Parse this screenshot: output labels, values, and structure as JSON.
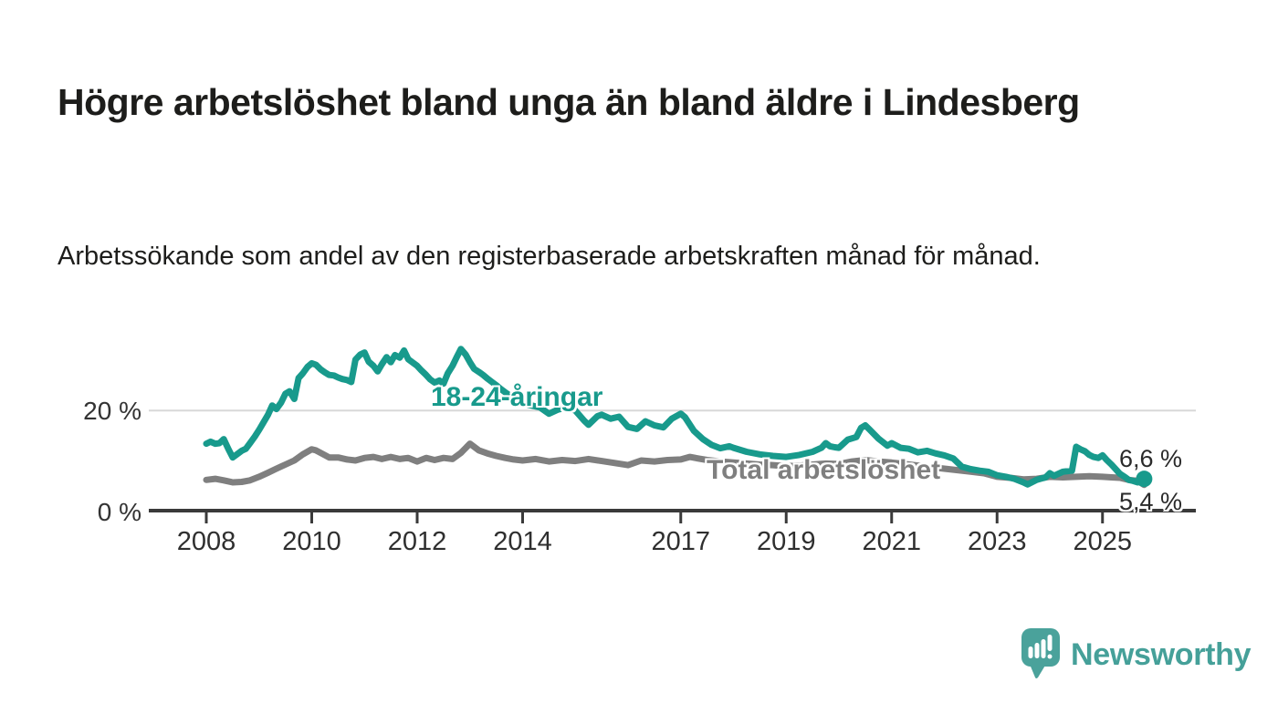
{
  "page": {
    "title": "Högre arbetslöshet bland unga än bland äldre i Lindesberg",
    "subtitle": "Arbetssökande som andel av den registerbaserade arbetskraften månad för månad."
  },
  "branding": {
    "logo_text": "Newsworthy",
    "logo_color": "#45a099",
    "icon": "newsworthy-speech-bubble-bar-chart-icon"
  },
  "colors": {
    "youth_line": "#189a8c",
    "total_line": "#7f7f7f",
    "gridline": "#d8d8d8",
    "axis": "#3a3a3a",
    "text_dark": "#1d1d1b",
    "tick_text": "#2f2f2f"
  },
  "chart_data": {
    "type": "line",
    "title": "Högre arbetslöshet bland unga än bland äldre i Lindesberg",
    "subtitle": "Arbetssökande som andel av den registerbaserade arbetskraften månad för månad.",
    "unit": "%",
    "grid": "single horizontal gridline at 20 %, x axis baseline at 0 %",
    "legend_position": "inline labels on lines",
    "x_axis": {
      "label": "",
      "ticks": [
        2008,
        2010,
        2012,
        2014,
        2017,
        2019,
        2021,
        2023,
        2025
      ],
      "range": [
        2007.6,
        2026.0
      ]
    },
    "y_axis": {
      "label": "",
      "ticks": [
        {
          "value": 0,
          "label": "0 %"
        },
        {
          "value": 20,
          "label": "20 %"
        }
      ],
      "range": [
        0,
        36
      ]
    },
    "series": [
      {
        "name": "18-24-åringar",
        "color": "#189a8c",
        "end_label": "6,6 %",
        "end_value": 6.6,
        "end_dot": true,
        "points": [
          [
            2008.0,
            13.5
          ],
          [
            2008.08,
            13.9
          ],
          [
            2008.17,
            13.5
          ],
          [
            2008.25,
            13.6
          ],
          [
            2008.33,
            14.4
          ],
          [
            2008.42,
            12.4
          ],
          [
            2008.5,
            10.8
          ],
          [
            2008.58,
            11.4
          ],
          [
            2008.67,
            12.1
          ],
          [
            2008.75,
            12.5
          ],
          [
            2008.83,
            13.6
          ],
          [
            2008.92,
            14.9
          ],
          [
            2009.0,
            16.2
          ],
          [
            2009.08,
            17.6
          ],
          [
            2009.17,
            19.2
          ],
          [
            2009.25,
            21.0
          ],
          [
            2009.33,
            20.3
          ],
          [
            2009.42,
            21.6
          ],
          [
            2009.5,
            23.3
          ],
          [
            2009.58,
            23.8
          ],
          [
            2009.67,
            22.3
          ],
          [
            2009.75,
            26.4
          ],
          [
            2009.83,
            27.3
          ],
          [
            2009.92,
            28.6
          ],
          [
            2010.0,
            29.3
          ],
          [
            2010.08,
            29.0
          ],
          [
            2010.17,
            28.1
          ],
          [
            2010.25,
            27.5
          ],
          [
            2010.33,
            27.0
          ],
          [
            2010.42,
            26.9
          ],
          [
            2010.5,
            26.5
          ],
          [
            2010.58,
            26.2
          ],
          [
            2010.67,
            26.0
          ],
          [
            2010.75,
            25.6
          ],
          [
            2010.83,
            30.0
          ],
          [
            2010.92,
            31.0
          ],
          [
            2011.0,
            31.4
          ],
          [
            2011.08,
            29.6
          ],
          [
            2011.17,
            28.8
          ],
          [
            2011.25,
            27.7
          ],
          [
            2011.33,
            29.1
          ],
          [
            2011.42,
            30.5
          ],
          [
            2011.5,
            29.5
          ],
          [
            2011.58,
            30.9
          ],
          [
            2011.67,
            30.4
          ],
          [
            2011.75,
            31.8
          ],
          [
            2011.83,
            30.1
          ],
          [
            2011.92,
            29.4
          ],
          [
            2012.0,
            28.8
          ],
          [
            2012.08,
            27.9
          ],
          [
            2012.17,
            27.0
          ],
          [
            2012.25,
            26.1
          ],
          [
            2012.33,
            25.5
          ],
          [
            2012.42,
            25.9
          ],
          [
            2012.5,
            25.3
          ],
          [
            2012.58,
            27.3
          ],
          [
            2012.67,
            28.8
          ],
          [
            2012.75,
            30.5
          ],
          [
            2012.83,
            32.1
          ],
          [
            2012.92,
            31.0
          ],
          [
            2013.0,
            29.5
          ],
          [
            2013.08,
            28.2
          ],
          [
            2013.17,
            27.6
          ],
          [
            2013.25,
            27.0
          ],
          [
            2013.33,
            26.3
          ],
          [
            2013.42,
            25.6
          ],
          [
            2013.5,
            25.0
          ],
          [
            2013.58,
            24.3
          ],
          [
            2013.67,
            23.6
          ],
          [
            2013.75,
            23.0
          ],
          [
            2013.83,
            22.4
          ],
          [
            2013.92,
            21.8
          ],
          [
            2014.0,
            21.4
          ],
          [
            2014.17,
            21.0
          ],
          [
            2014.33,
            20.6
          ],
          [
            2014.5,
            19.4
          ],
          [
            2014.67,
            20.2
          ],
          [
            2014.83,
            20.6
          ],
          [
            2015.0,
            20.0
          ],
          [
            2015.17,
            18.0
          ],
          [
            2015.25,
            17.2
          ],
          [
            2015.42,
            18.9
          ],
          [
            2015.5,
            19.2
          ],
          [
            2015.67,
            18.4
          ],
          [
            2015.83,
            18.8
          ],
          [
            2016.0,
            16.8
          ],
          [
            2016.17,
            16.4
          ],
          [
            2016.33,
            17.9
          ],
          [
            2016.5,
            17.1
          ],
          [
            2016.67,
            16.7
          ],
          [
            2016.83,
            18.4
          ],
          [
            2017.0,
            19.4
          ],
          [
            2017.08,
            18.7
          ],
          [
            2017.25,
            16.0
          ],
          [
            2017.42,
            14.4
          ],
          [
            2017.58,
            13.3
          ],
          [
            2017.75,
            12.6
          ],
          [
            2017.92,
            13.0
          ],
          [
            2018.0,
            12.7
          ],
          [
            2018.25,
            11.9
          ],
          [
            2018.5,
            11.4
          ],
          [
            2018.75,
            11.1
          ],
          [
            2019.0,
            10.9
          ],
          [
            2019.25,
            11.3
          ],
          [
            2019.5,
            11.9
          ],
          [
            2019.67,
            12.7
          ],
          [
            2019.75,
            13.6
          ],
          [
            2019.83,
            13.0
          ],
          [
            2019.92,
            12.8
          ],
          [
            2020.0,
            12.7
          ],
          [
            2020.17,
            14.3
          ],
          [
            2020.33,
            14.8
          ],
          [
            2020.42,
            16.6
          ],
          [
            2020.5,
            17.1
          ],
          [
            2020.58,
            16.3
          ],
          [
            2020.75,
            14.5
          ],
          [
            2020.92,
            13.1
          ],
          [
            2021.0,
            13.6
          ],
          [
            2021.17,
            12.7
          ],
          [
            2021.33,
            12.5
          ],
          [
            2021.5,
            11.8
          ],
          [
            2021.67,
            12.1
          ],
          [
            2021.83,
            11.6
          ],
          [
            2022.0,
            11.2
          ],
          [
            2022.17,
            10.6
          ],
          [
            2022.33,
            9.0
          ],
          [
            2022.5,
            8.5
          ],
          [
            2022.67,
            8.2
          ],
          [
            2022.83,
            8.0
          ],
          [
            2023.0,
            7.3
          ],
          [
            2023.17,
            7.0
          ],
          [
            2023.33,
            6.6
          ],
          [
            2023.5,
            5.9
          ],
          [
            2023.58,
            5.5
          ],
          [
            2023.75,
            6.4
          ],
          [
            2023.92,
            6.9
          ],
          [
            2024.0,
            7.7
          ],
          [
            2024.08,
            7.2
          ],
          [
            2024.25,
            8.0
          ],
          [
            2024.42,
            8.2
          ],
          [
            2024.5,
            12.9
          ],
          [
            2024.58,
            12.4
          ],
          [
            2024.67,
            12.0
          ],
          [
            2024.75,
            11.3
          ],
          [
            2024.83,
            10.9
          ],
          [
            2024.92,
            10.7
          ],
          [
            2025.0,
            11.2
          ],
          [
            2025.08,
            10.3
          ],
          [
            2025.17,
            9.4
          ],
          [
            2025.25,
            8.5
          ],
          [
            2025.33,
            7.6
          ],
          [
            2025.42,
            7.0
          ],
          [
            2025.5,
            6.4
          ],
          [
            2025.58,
            6.2
          ],
          [
            2025.67,
            5.9
          ],
          [
            2025.79,
            6.6
          ]
        ]
      },
      {
        "name": "Total arbetslöshet",
        "color": "#7f7f7f",
        "end_label": "5,4 %",
        "end_value": 5.4,
        "end_dot": false,
        "points": [
          [
            2008.0,
            6.4
          ],
          [
            2008.17,
            6.6
          ],
          [
            2008.33,
            6.3
          ],
          [
            2008.5,
            5.9
          ],
          [
            2008.67,
            6.0
          ],
          [
            2008.83,
            6.3
          ],
          [
            2009.0,
            7.0
          ],
          [
            2009.17,
            7.8
          ],
          [
            2009.33,
            8.6
          ],
          [
            2009.5,
            9.4
          ],
          [
            2009.67,
            10.2
          ],
          [
            2009.83,
            11.4
          ],
          [
            2010.0,
            12.4
          ],
          [
            2010.08,
            12.2
          ],
          [
            2010.17,
            11.7
          ],
          [
            2010.33,
            10.8
          ],
          [
            2010.5,
            10.8
          ],
          [
            2010.67,
            10.4
          ],
          [
            2010.83,
            10.2
          ],
          [
            2011.0,
            10.7
          ],
          [
            2011.17,
            10.9
          ],
          [
            2011.33,
            10.5
          ],
          [
            2011.5,
            10.9
          ],
          [
            2011.67,
            10.5
          ],
          [
            2011.83,
            10.7
          ],
          [
            2012.0,
            10.0
          ],
          [
            2012.17,
            10.7
          ],
          [
            2012.33,
            10.3
          ],
          [
            2012.5,
            10.7
          ],
          [
            2012.67,
            10.5
          ],
          [
            2012.83,
            11.7
          ],
          [
            2013.0,
            13.5
          ],
          [
            2013.17,
            12.2
          ],
          [
            2013.33,
            11.6
          ],
          [
            2013.5,
            11.1
          ],
          [
            2013.67,
            10.7
          ],
          [
            2013.83,
            10.4
          ],
          [
            2014.0,
            10.2
          ],
          [
            2014.25,
            10.5
          ],
          [
            2014.5,
            10.0
          ],
          [
            2014.75,
            10.3
          ],
          [
            2015.0,
            10.1
          ],
          [
            2015.25,
            10.5
          ],
          [
            2015.5,
            10.1
          ],
          [
            2015.75,
            9.7
          ],
          [
            2016.0,
            9.3
          ],
          [
            2016.25,
            10.2
          ],
          [
            2016.5,
            10.0
          ],
          [
            2016.75,
            10.3
          ],
          [
            2017.0,
            10.4
          ],
          [
            2017.17,
            10.9
          ],
          [
            2017.33,
            10.6
          ],
          [
            2017.5,
            10.3
          ],
          [
            2017.75,
            10.0
          ],
          [
            2018.0,
            9.8
          ],
          [
            2018.25,
            9.6
          ],
          [
            2018.5,
            9.4
          ],
          [
            2018.75,
            9.3
          ],
          [
            2019.0,
            9.1
          ],
          [
            2019.25,
            9.2
          ],
          [
            2019.5,
            9.4
          ],
          [
            2019.75,
            9.6
          ],
          [
            2020.0,
            9.5
          ],
          [
            2020.25,
            10.0
          ],
          [
            2020.5,
            10.3
          ],
          [
            2020.75,
            10.0
          ],
          [
            2021.0,
            9.8
          ],
          [
            2021.25,
            9.5
          ],
          [
            2021.5,
            9.2
          ],
          [
            2021.75,
            8.9
          ],
          [
            2022.0,
            8.6
          ],
          [
            2022.25,
            8.3
          ],
          [
            2022.5,
            8.0
          ],
          [
            2022.75,
            7.7
          ],
          [
            2023.0,
            7.0
          ],
          [
            2023.25,
            6.8
          ],
          [
            2023.5,
            6.5
          ],
          [
            2023.75,
            6.6
          ],
          [
            2024.0,
            7.0
          ],
          [
            2024.25,
            6.9
          ],
          [
            2024.5,
            7.0
          ],
          [
            2024.75,
            7.1
          ],
          [
            2025.0,
            7.0
          ],
          [
            2025.17,
            6.9
          ],
          [
            2025.33,
            6.8
          ],
          [
            2025.5,
            6.4
          ],
          [
            2025.67,
            6.2
          ],
          [
            2025.79,
            5.4
          ]
        ]
      }
    ]
  }
}
